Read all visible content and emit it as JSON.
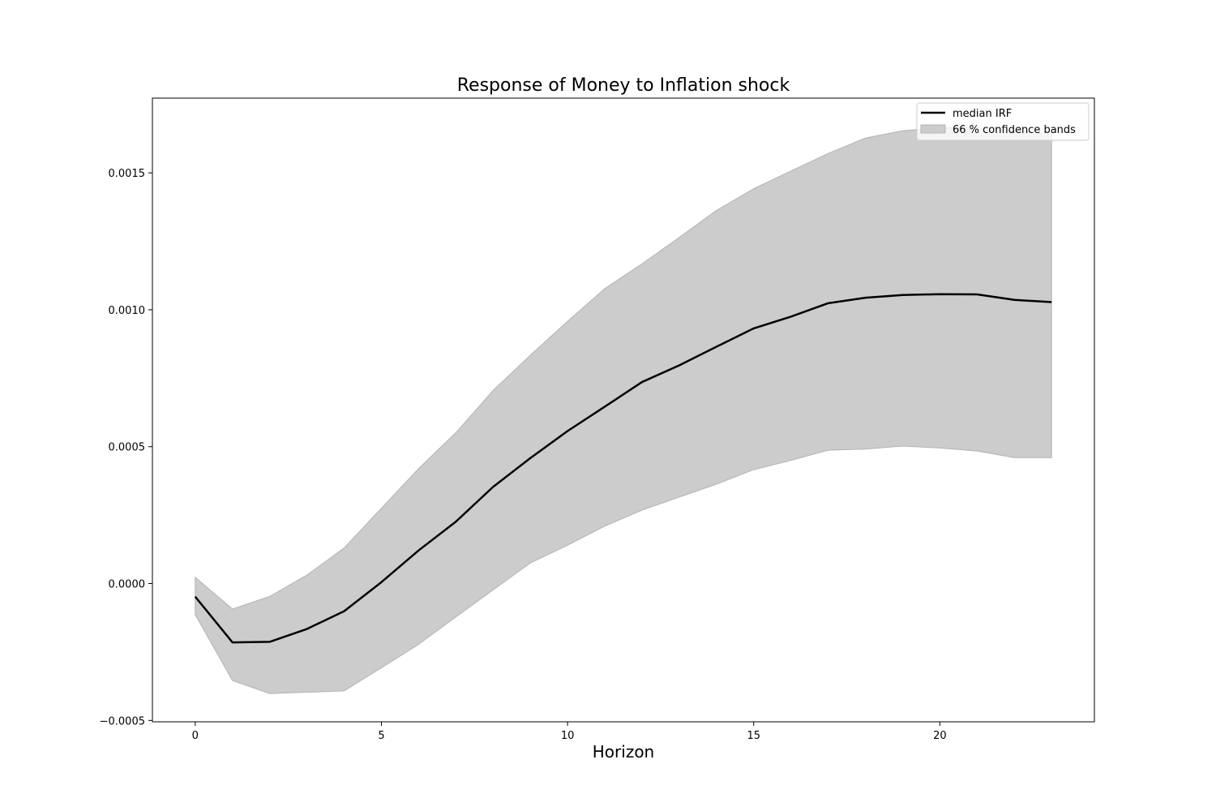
{
  "chart_data": {
    "type": "line",
    "title": "Response of Money to Inflation shock",
    "xlabel": "Horizon",
    "ylabel": "",
    "xlim": [
      -1.15,
      24.15
    ],
    "ylim": [
      -0.000505,
      0.001773
    ],
    "x_ticks": [
      0,
      5,
      10,
      15,
      20
    ],
    "x_tick_labels": [
      "0",
      "5",
      "10",
      "15",
      "20"
    ],
    "y_ticks": [
      -0.0005,
      0.0,
      0.0005,
      0.001,
      0.0015
    ],
    "y_tick_labels": [
      "−0.0005",
      "0.0000",
      "0.0005",
      "0.0010",
      "0.0015"
    ],
    "grid": false,
    "legend_position": "top-right",
    "x": [
      0,
      1,
      2,
      3,
      4,
      5,
      6,
      7,
      8,
      9,
      10,
      11,
      12,
      13,
      14,
      15,
      16,
      17,
      18,
      19,
      20,
      21,
      22,
      23
    ],
    "series": [
      {
        "name": "median IRF",
        "kind": "line",
        "color": "#000000",
        "values": [
          -4.8e-05,
          -0.000215,
          -0.000213,
          -0.000166,
          -0.000101,
          5e-06,
          0.000121,
          0.000226,
          0.000353,
          0.000458,
          0.000557,
          0.000646,
          0.000736,
          0.000797,
          0.000865,
          0.000932,
          0.000975,
          0.001024,
          0.001044,
          0.001054,
          0.001057,
          0.001056,
          0.001036,
          0.001028
        ]
      },
      {
        "name": "66 % confidence bands",
        "kind": "band",
        "color": "#cccccc",
        "lower": [
          -0.000114,
          -0.000354,
          -0.000402,
          -0.000397,
          -0.000392,
          -0.000308,
          -0.000222,
          -0.000122,
          -2.3e-05,
          7.5e-05,
          0.00014,
          0.00021,
          0.000268,
          0.000316,
          0.000363,
          0.000416,
          0.00045,
          0.000487,
          0.000491,
          0.000502,
          0.000495,
          0.000484,
          0.00046,
          0.00046
        ],
        "upper": [
          2.3e-05,
          -9.3e-05,
          -4.7e-05,
          3.1e-05,
          0.00013,
          0.000275,
          0.00042,
          0.000551,
          0.000705,
          0.000834,
          0.000958,
          0.001077,
          0.001168,
          0.001264,
          0.001363,
          0.001442,
          0.001507,
          0.001571,
          0.001627,
          0.001654,
          0.001665,
          0.001667,
          0.001654,
          0.00164
        ]
      }
    ]
  }
}
